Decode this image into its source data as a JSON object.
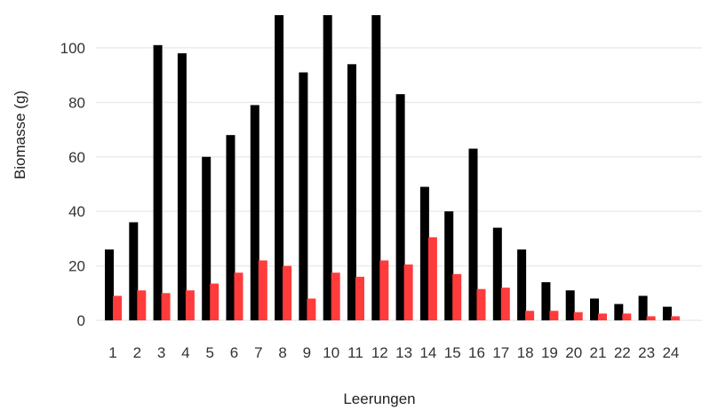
{
  "chart_data": {
    "type": "bar",
    "title": "",
    "xlabel": "Leerungen",
    "ylabel": "Biomasse  (g)",
    "categories": [
      "1",
      "2",
      "3",
      "4",
      "5",
      "6",
      "7",
      "8",
      "9",
      "10",
      "11",
      "12",
      "13",
      "14",
      "15",
      "16",
      "17",
      "18",
      "19",
      "20",
      "21",
      "22",
      "23",
      "24"
    ],
    "series": [
      {
        "values": [
          26,
          36,
          101,
          98,
          60,
          68,
          79,
          112,
          91,
          112,
          94,
          112,
          83,
          49,
          40,
          63,
          34,
          26,
          14,
          11,
          8,
          6,
          9,
          5
        ],
        "color": "#000000"
      },
      {
        "values": [
          9,
          11,
          10,
          11,
          13.5,
          17.5,
          22,
          20,
          8,
          17.5,
          16,
          22,
          20.5,
          30.5,
          17,
          11.5,
          12,
          3.5,
          3.5,
          3,
          2.5,
          2.5,
          1.5,
          1.5
        ],
        "color": "#ff3b3b"
      }
    ],
    "yticks": [
      0,
      20,
      40,
      60,
      80,
      100
    ],
    "ylim": [
      0,
      113
    ],
    "grid": true,
    "legend": "none"
  }
}
